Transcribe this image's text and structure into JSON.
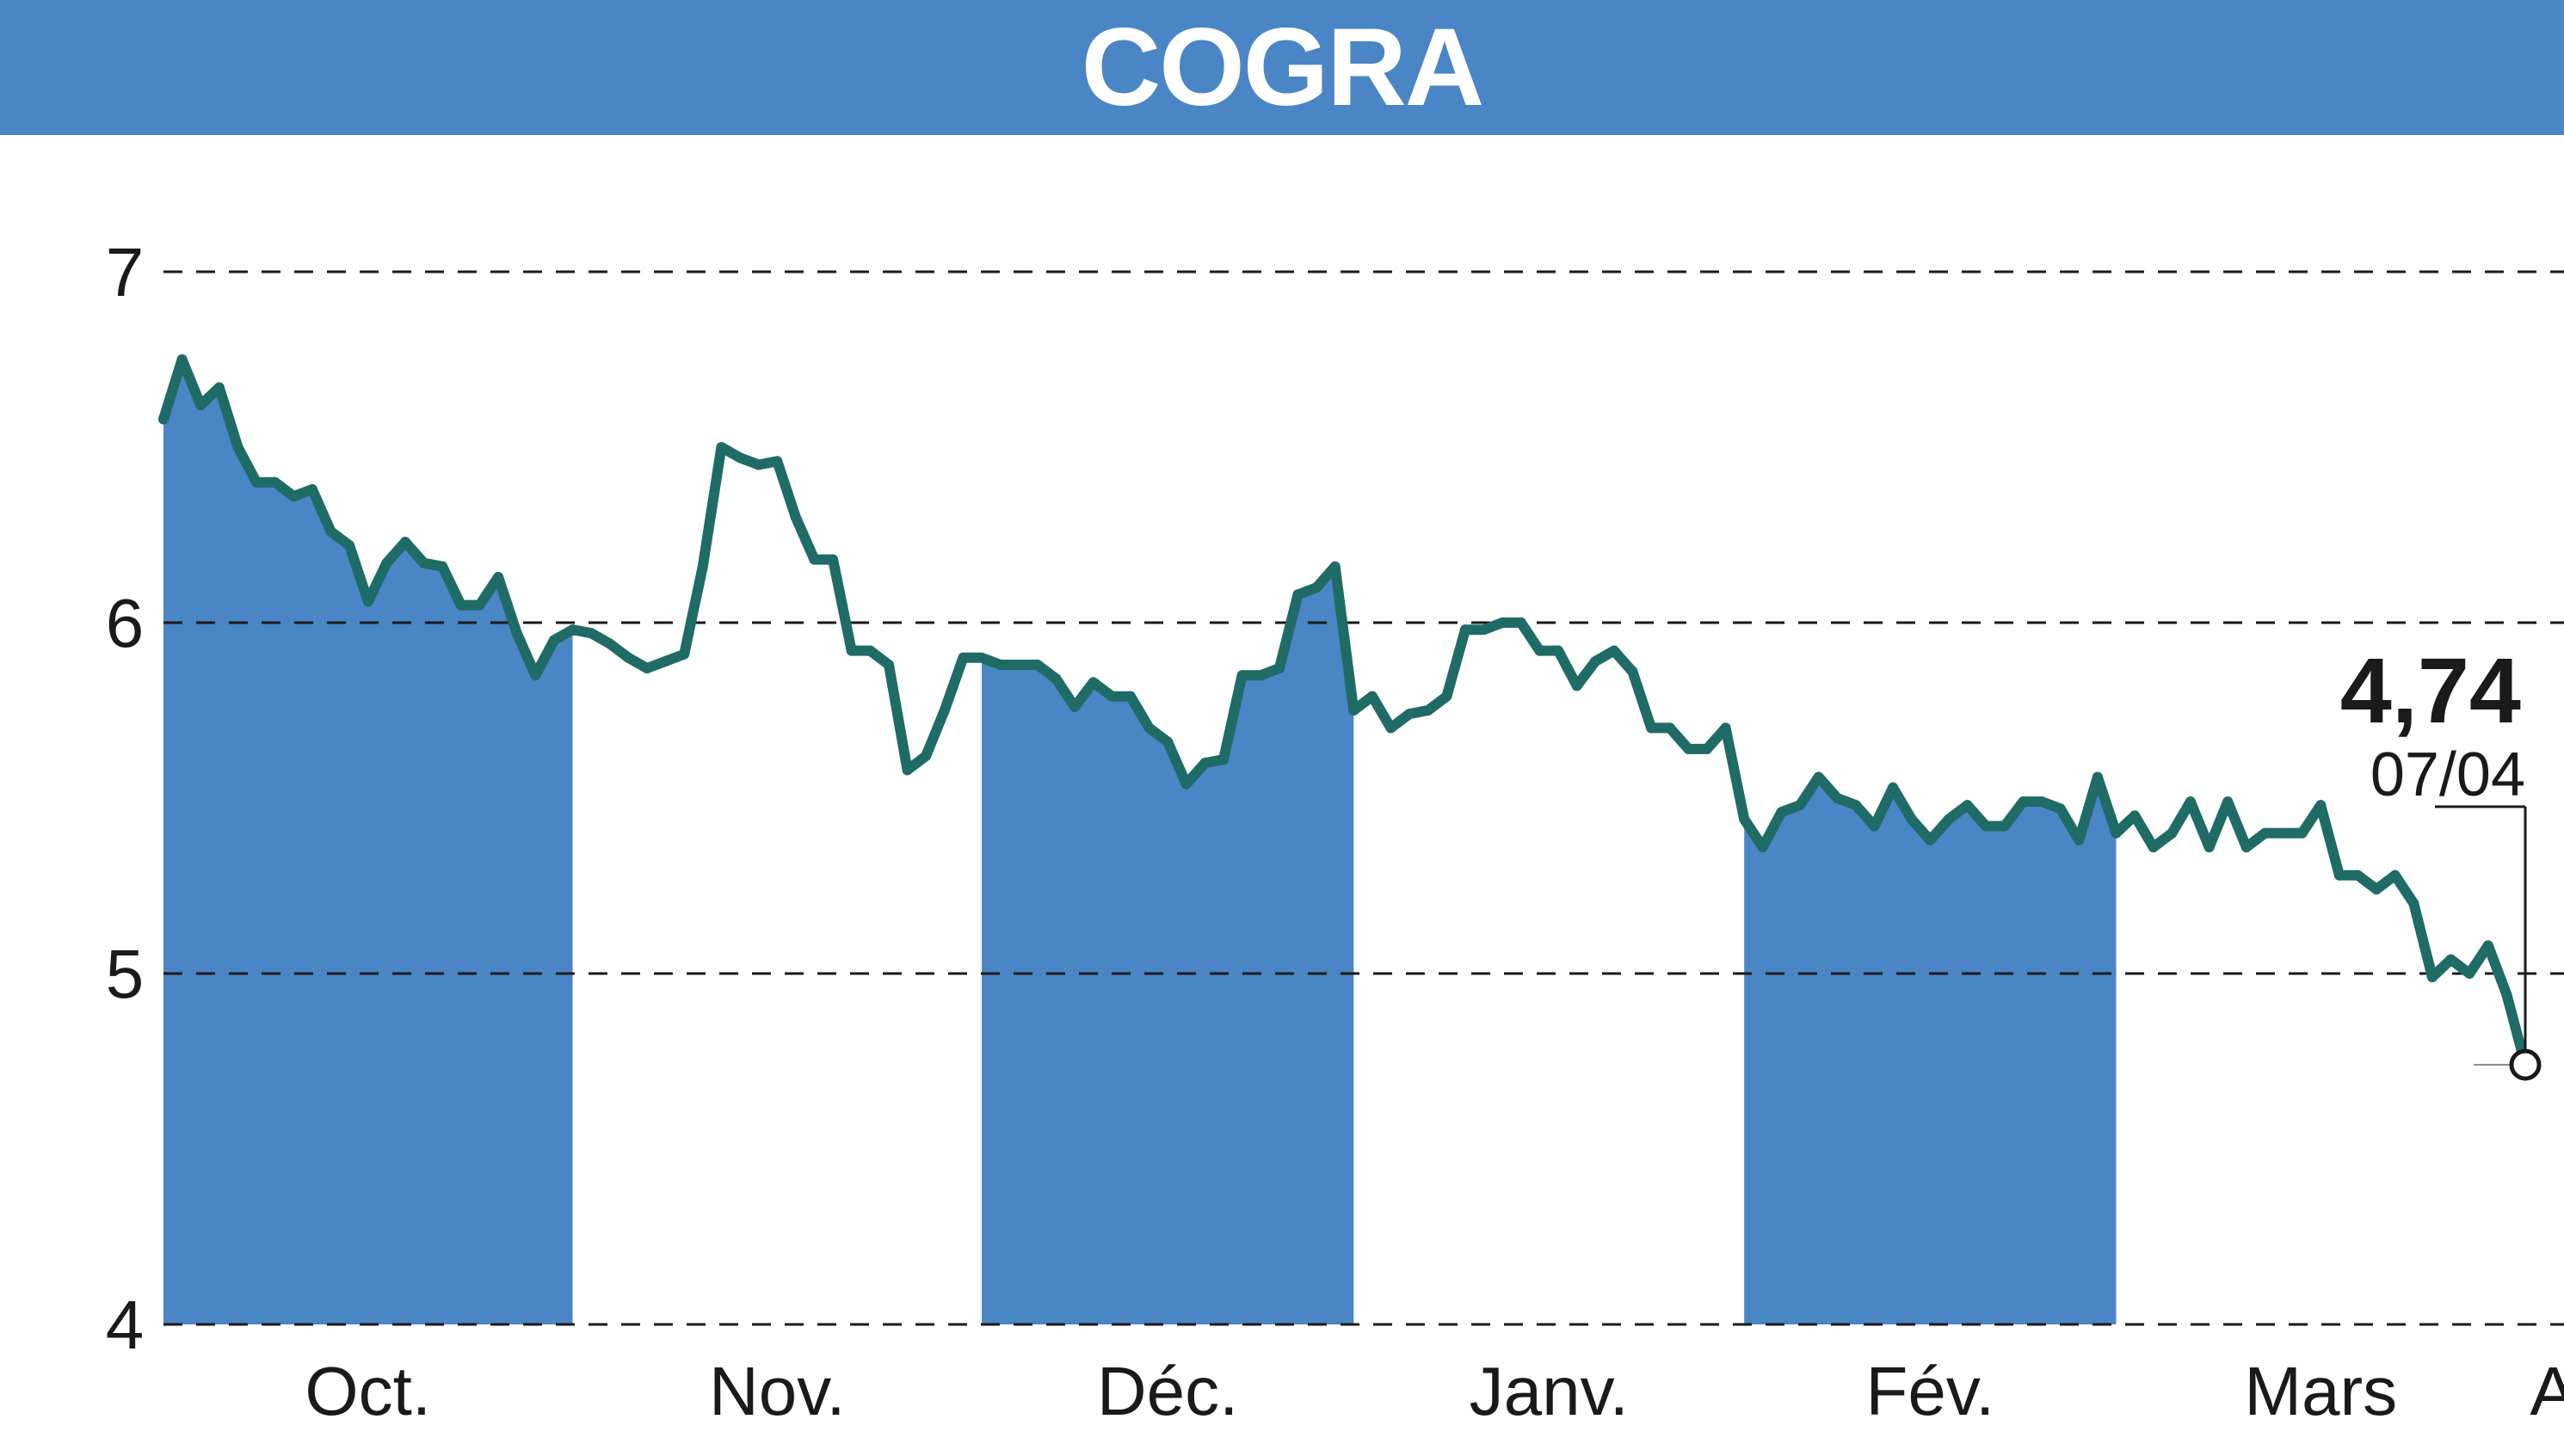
{
  "header": {
    "title": "COGRA"
  },
  "colors": {
    "band": "#4a85c6",
    "line": "#1f6b66",
    "grid": "#1a1a1a",
    "title_bg": "#4a85c6"
  },
  "chart_data": {
    "type": "line",
    "title": "COGRA",
    "xlabel": "",
    "ylabel": "",
    "ylim": [
      4,
      7
    ],
    "yticks": [
      4,
      5,
      6,
      7
    ],
    "grid": "horizontal dashed",
    "months": [
      {
        "label": "Oct.",
        "start": 0,
        "end": 22,
        "shaded": true
      },
      {
        "label": "Nov.",
        "start": 22,
        "end": 44,
        "shaded": false
      },
      {
        "label": "Déc.",
        "start": 44,
        "end": 64,
        "shaded": true
      },
      {
        "label": "Janv.",
        "start": 64,
        "end": 85,
        "shaded": false
      },
      {
        "label": "Fév.",
        "start": 85,
        "end": 105,
        "shaded": true
      },
      {
        "label": "Mars",
        "start": 105,
        "end": 127,
        "shaded": false
      },
      {
        "label": "A.",
        "start": 127,
        "end": 131,
        "shaded": true
      }
    ],
    "series": [
      {
        "values": [
          6.58,
          6.75,
          6.62,
          6.67,
          6.5,
          6.4,
          6.4,
          6.36,
          6.38,
          6.26,
          6.22,
          6.06,
          6.17,
          6.23,
          6.17,
          6.16,
          6.05,
          6.05,
          6.13,
          5.97,
          5.85,
          5.95,
          5.98,
          5.97,
          5.94,
          5.9,
          5.87,
          5.89,
          5.91,
          6.16,
          6.5,
          6.47,
          6.45,
          6.46,
          6.3,
          6.18,
          6.18,
          5.92,
          5.92,
          5.88,
          5.58,
          5.62,
          5.75,
          5.9,
          5.9,
          5.88,
          5.88,
          5.88,
          5.84,
          5.76,
          5.83,
          5.79,
          5.79,
          5.7,
          5.66,
          5.54,
          5.6,
          5.61,
          5.85,
          5.85,
          5.87,
          6.08,
          6.1,
          6.16,
          5.75,
          5.79,
          5.7,
          5.74,
          5.75,
          5.79,
          5.98,
          5.98,
          6.0,
          6.0,
          5.92,
          5.92,
          5.82,
          5.89,
          5.92,
          5.86,
          5.7,
          5.7,
          5.64,
          5.64,
          5.7,
          5.44,
          5.36,
          5.46,
          5.48,
          5.56,
          5.5,
          5.48,
          5.42,
          5.53,
          5.44,
          5.38,
          5.44,
          5.48,
          5.42,
          5.42,
          5.49,
          5.49,
          5.47,
          5.38,
          5.56,
          5.4,
          5.45,
          5.36,
          5.4,
          5.49,
          5.36,
          5.49,
          5.36,
          5.4,
          5.4,
          5.4,
          5.48,
          5.28,
          5.28,
          5.24,
          5.28,
          5.2,
          4.99,
          5.04,
          5.0,
          5.08,
          4.94,
          4.74
        ]
      }
    ],
    "last": {
      "value_label": "4,74",
      "date_label": "07/04",
      "value": 4.74
    }
  }
}
